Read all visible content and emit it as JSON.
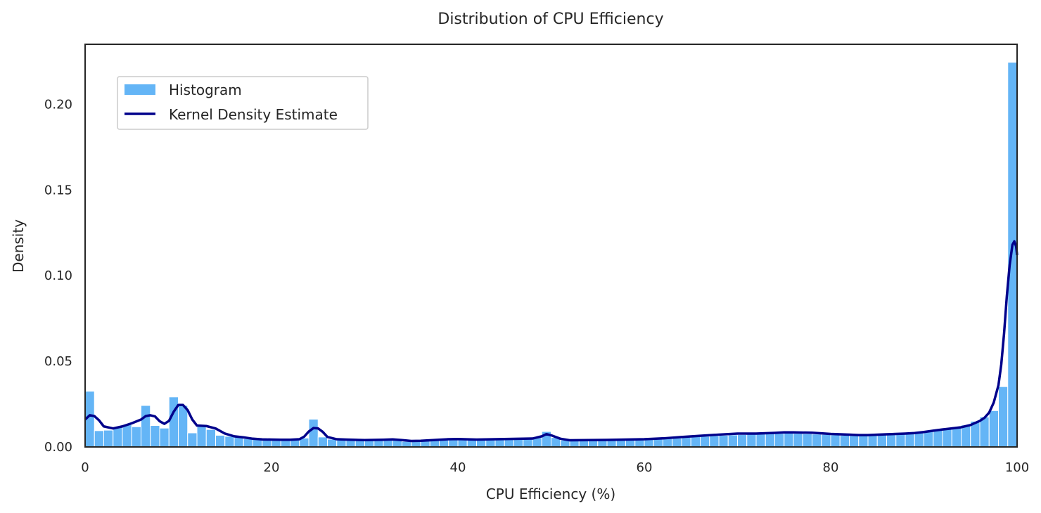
{
  "chart_data": {
    "type": "bar",
    "title": "Distribution of CPU Efficiency",
    "xlabel": "CPU Efficiency (%)",
    "ylabel": "Density",
    "xlim": [
      0,
      100
    ],
    "ylim": [
      0,
      0.235
    ],
    "x_ticks": [
      0,
      20,
      40,
      60,
      80,
      100
    ],
    "x_tick_labels": [
      "0",
      "20",
      "40",
      "60",
      "80",
      "100"
    ],
    "y_ticks": [
      0,
      0.05,
      0.1,
      0.15,
      0.2
    ],
    "y_tick_labels": [
      "0.00",
      "0.05",
      "0.10",
      "0.15",
      "0.20"
    ],
    "grid": false,
    "legend_position": "upper-left",
    "histogram": {
      "name": "Histogram",
      "color": "#64b5f6",
      "bin_width": 1,
      "bin_start": 0,
      "values": [
        0.0325,
        0.0095,
        0.0098,
        0.0115,
        0.013,
        0.0118,
        0.0242,
        0.0125,
        0.011,
        0.0292,
        0.0242,
        0.0082,
        0.012,
        0.0102,
        0.0068,
        0.0062,
        0.0058,
        0.0048,
        0.0045,
        0.0043,
        0.0042,
        0.0041,
        0.0041,
        0.0052,
        0.0162,
        0.0058,
        0.0045,
        0.0042,
        0.004,
        0.0038,
        0.0038,
        0.0038,
        0.0042,
        0.0039,
        0.0032,
        0.0032,
        0.0035,
        0.0038,
        0.0042,
        0.0045,
        0.0042,
        0.0042,
        0.0044,
        0.0045,
        0.0047,
        0.0049,
        0.005,
        0.0052,
        0.0054,
        0.009,
        0.0055,
        0.004,
        0.0038,
        0.0039,
        0.0039,
        0.004,
        0.0041,
        0.0042,
        0.0043,
        0.0044,
        0.0045,
        0.0047,
        0.0049,
        0.0052,
        0.0057,
        0.006,
        0.0062,
        0.0065,
        0.0068,
        0.007,
        0.0072,
        0.0074,
        0.0076,
        0.0078,
        0.0079,
        0.008,
        0.0079,
        0.0077,
        0.0075,
        0.0073,
        0.007,
        0.0068,
        0.0066,
        0.0066,
        0.0068,
        0.0072,
        0.0075,
        0.0078,
        0.0082,
        0.0088,
        0.0095,
        0.0102,
        0.0108,
        0.0118,
        0.0128,
        0.015,
        0.0175,
        0.0212,
        0.0352,
        0.2245
      ]
    },
    "kde": {
      "name": "Kernel Density Estimate",
      "color": "#00008b",
      "x": [
        0,
        0.5,
        1,
        1.5,
        2,
        3,
        4,
        5,
        6,
        6.5,
        7,
        7.5,
        8,
        8.5,
        9,
        9.5,
        10,
        10.5,
        11,
        11.5,
        12,
        13,
        14,
        15,
        16,
        17,
        18,
        19,
        20,
        21,
        22,
        23,
        23.5,
        24,
        24.5,
        25,
        25.5,
        26,
        27,
        28,
        30,
        32,
        33,
        34,
        35,
        36,
        38,
        39,
        40,
        42,
        44,
        46,
        48,
        49,
        49.5,
        50,
        51,
        52,
        54,
        56,
        58,
        60,
        62,
        64,
        66,
        68,
        70,
        72,
        74,
        75,
        76,
        78,
        80,
        82,
        83,
        84,
        86,
        88,
        89,
        90,
        91,
        92,
        93,
        94,
        95,
        96,
        96.5,
        97,
        97.5,
        98,
        98.3,
        98.6,
        98.9,
        99.2,
        99.5,
        99.7,
        99.9,
        100
      ],
      "y": [
        0.016,
        0.0185,
        0.018,
        0.0155,
        0.012,
        0.0108,
        0.012,
        0.0138,
        0.016,
        0.018,
        0.0185,
        0.0178,
        0.015,
        0.0135,
        0.0152,
        0.0205,
        0.0245,
        0.0245,
        0.0215,
        0.016,
        0.0125,
        0.0122,
        0.0108,
        0.0078,
        0.0062,
        0.0056,
        0.0048,
        0.0044,
        0.0043,
        0.0042,
        0.0042,
        0.0045,
        0.006,
        0.009,
        0.011,
        0.0108,
        0.0088,
        0.0058,
        0.0045,
        0.0043,
        0.004,
        0.0042,
        0.0044,
        0.004,
        0.0035,
        0.0036,
        0.0042,
        0.0045,
        0.0046,
        0.0043,
        0.0045,
        0.0047,
        0.0049,
        0.0062,
        0.0075,
        0.0068,
        0.0048,
        0.0039,
        0.004,
        0.0041,
        0.0043,
        0.0045,
        0.005,
        0.0058,
        0.0065,
        0.0072,
        0.0078,
        0.0078,
        0.0082,
        0.0085,
        0.0085,
        0.0083,
        0.0076,
        0.0072,
        0.0069,
        0.0069,
        0.0074,
        0.0078,
        0.0081,
        0.0087,
        0.0095,
        0.0102,
        0.0108,
        0.0115,
        0.0128,
        0.0152,
        0.017,
        0.02,
        0.026,
        0.036,
        0.048,
        0.066,
        0.088,
        0.106,
        0.118,
        0.12,
        0.117,
        0.112
      ]
    }
  }
}
